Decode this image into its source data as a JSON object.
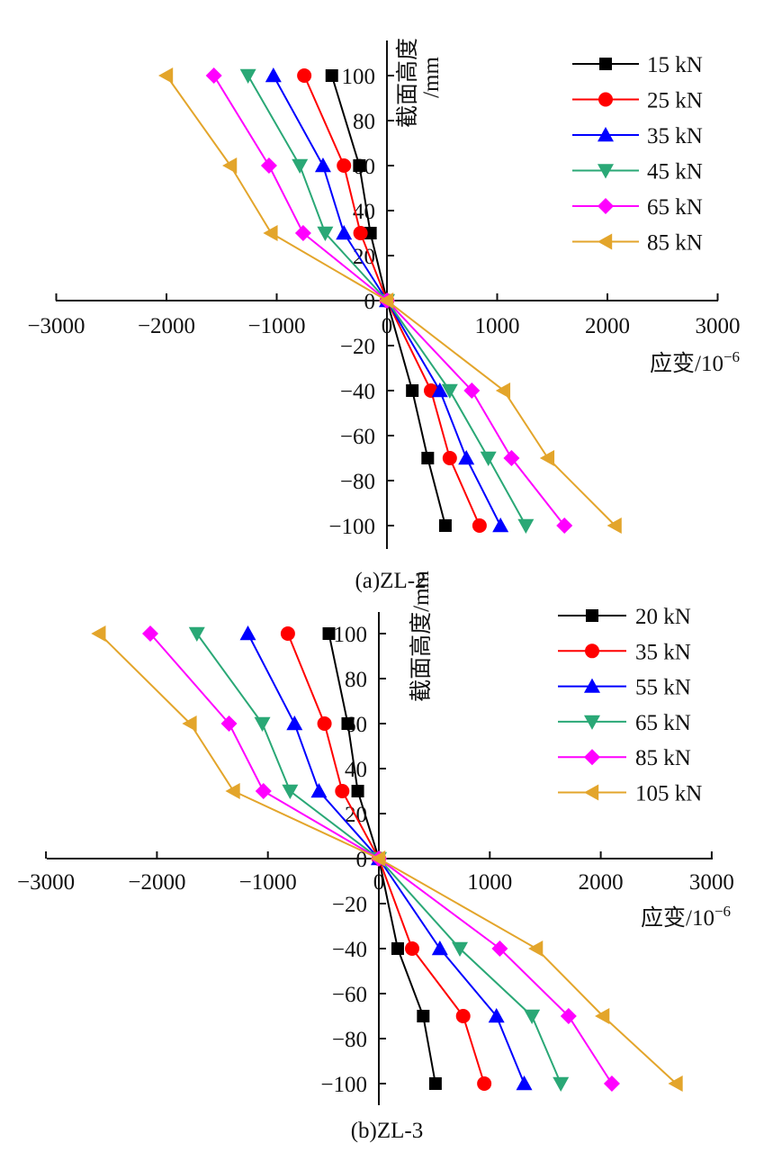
{
  "chart_data": [
    {
      "type": "line",
      "caption": "(a)ZL-2",
      "xlabel": "应变/10",
      "xlabel_exponent": "−6",
      "ylabel": "截面高度",
      "ylabel_unit": "/mm",
      "xlim": [
        -3000,
        3000
      ],
      "ylim": [
        -110,
        110
      ],
      "x_ticks": [
        -3000,
        -2000,
        -1000,
        0,
        1000,
        2000,
        3000
      ],
      "x_tick_labels": [
        "−3000",
        "−2000",
        "−1000",
        "0",
        "1000",
        "2000",
        "3000"
      ],
      "y_ticks": [
        -100,
        -80,
        -60,
        -40,
        -20,
        0,
        20,
        40,
        60,
        80,
        100
      ],
      "y_tick_labels": [
        "−100",
        "−80",
        "−60",
        "−40",
        "−20",
        "0",
        "20",
        "40",
        "60",
        "80",
        "100"
      ],
      "grid": false,
      "legend_position": "top-right",
      "y": [
        100,
        60,
        30,
        0,
        -40,
        -70,
        -100
      ],
      "series": [
        {
          "name": "15 kN",
          "color": "#000000",
          "marker": "square",
          "x": [
            -500,
            -250,
            -150,
            0,
            230,
            370,
            530
          ]
        },
        {
          "name": "25 kN",
          "color": "#ff0000",
          "marker": "circle",
          "x": [
            -750,
            -390,
            -240,
            0,
            400,
            570,
            840
          ]
        },
        {
          "name": "35 kN",
          "color": "#0000ff",
          "marker": "triangle-up",
          "x": [
            -1030,
            -580,
            -390,
            0,
            480,
            720,
            1030
          ]
        },
        {
          "name": "45 kN",
          "color": "#2aa876",
          "marker": "triangle-down",
          "x": [
            -1260,
            -790,
            -560,
            0,
            570,
            920,
            1260
          ]
        },
        {
          "name": "65 kN",
          "color": "#ff00ff",
          "marker": "diamond",
          "x": [
            -1570,
            -1070,
            -760,
            0,
            770,
            1130,
            1610
          ]
        },
        {
          "name": "85 kN",
          "color": "#e3a52b",
          "marker": "triangle-left",
          "x": [
            -2000,
            -1420,
            -1050,
            0,
            1060,
            1460,
            2070
          ]
        }
      ]
    },
    {
      "type": "line",
      "caption": "(b)ZL-3",
      "xlabel": "应变/10",
      "xlabel_exponent": "−6",
      "ylabel": "截面高度/mm",
      "xlim": [
        -3000,
        3000
      ],
      "ylim": [
        -110,
        110
      ],
      "x_ticks": [
        -3000,
        -2000,
        -1000,
        0,
        1000,
        2000,
        3000
      ],
      "x_tick_labels": [
        "−3000",
        "−2000",
        "−1000",
        "0",
        "1000",
        "2000",
        "3000"
      ],
      "y_ticks": [
        -100,
        -80,
        -60,
        -40,
        -20,
        0,
        20,
        40,
        60,
        80,
        100
      ],
      "y_tick_labels": [
        "−100",
        "−80",
        "−60",
        "−40",
        "−20",
        "0",
        "20",
        "40",
        "60",
        "80",
        "100"
      ],
      "grid": false,
      "legend_position": "top-right",
      "y": [
        100,
        60,
        30,
        0,
        -40,
        -70,
        -100
      ],
      "series": [
        {
          "name": "20 kN",
          "color": "#000000",
          "marker": "square",
          "x": [
            -450,
            -280,
            -190,
            0,
            170,
            400,
            510
          ]
        },
        {
          "name": "35 kN",
          "color": "#ff0000",
          "marker": "circle",
          "x": [
            -820,
            -490,
            -330,
            0,
            300,
            760,
            950
          ]
        },
        {
          "name": "55 kN",
          "color": "#0000ff",
          "marker": "triangle-up",
          "x": [
            -1180,
            -760,
            -540,
            0,
            550,
            1060,
            1310
          ]
        },
        {
          "name": "65 kN",
          "color": "#2aa876",
          "marker": "triangle-down",
          "x": [
            -1640,
            -1050,
            -800,
            0,
            730,
            1380,
            1640
          ]
        },
        {
          "name": "85 kN",
          "color": "#ff00ff",
          "marker": "diamond",
          "x": [
            -2060,
            -1350,
            -1040,
            0,
            1090,
            1710,
            2100
          ]
        },
        {
          "name": "105 kN",
          "color": "#e3a52b",
          "marker": "triangle-left",
          "x": [
            -2520,
            -1700,
            -1310,
            0,
            1420,
            2020,
            2680
          ]
        }
      ]
    }
  ]
}
